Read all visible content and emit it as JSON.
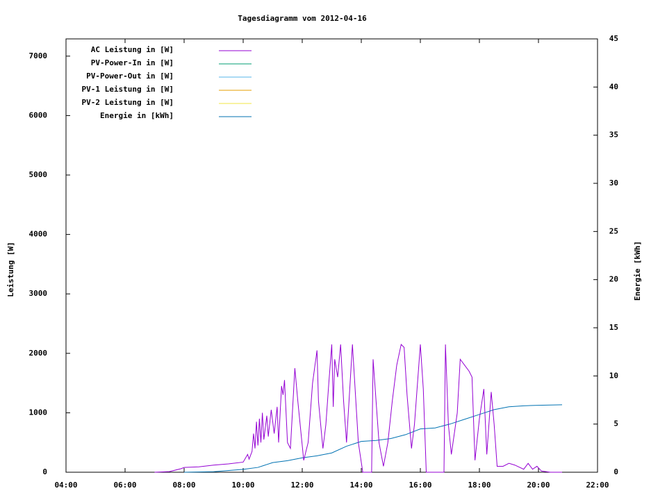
{
  "chart_data": {
    "type": "line",
    "title": "Tagesdiagramm vom 2012-04-16",
    "ylabel": "Leistung [W]",
    "y2label": "Energie [kWh]",
    "xlim": [
      4,
      22
    ],
    "xticks": [
      {
        "value": 4,
        "label": "04:00"
      },
      {
        "value": 6,
        "label": "06:00"
      },
      {
        "value": 8,
        "label": "08:00"
      },
      {
        "value": 10,
        "label": "10:00"
      },
      {
        "value": 12,
        "label": "12:00"
      },
      {
        "value": 14,
        "label": "14:00"
      },
      {
        "value": 16,
        "label": "16:00"
      },
      {
        "value": 18,
        "label": "18:00"
      },
      {
        "value": 20,
        "label": "20:00"
      },
      {
        "value": 22,
        "label": "22:00"
      }
    ],
    "ylim": [
      0,
      7290
    ],
    "yticks": [
      0,
      1000,
      2000,
      3000,
      4000,
      5000,
      6000,
      7000
    ],
    "y2lim": [
      0,
      45
    ],
    "y2ticks": [
      0,
      5,
      10,
      15,
      20,
      25,
      30,
      35,
      40,
      45
    ],
    "grid": false,
    "legend": "top-left",
    "series": [
      {
        "name": "AC Leistung in [W]",
        "color": "#9400d3",
        "x": [
          7.0,
          7.5,
          7.9,
          8.0,
          8.5,
          9.0,
          9.5,
          10.0,
          10.15,
          10.2,
          10.3,
          10.35,
          10.4,
          10.45,
          10.5,
          10.55,
          10.6,
          10.65,
          10.7,
          10.8,
          10.85,
          10.95,
          11.05,
          11.15,
          11.2,
          11.3,
          11.35,
          11.4,
          11.5,
          11.6,
          11.75,
          11.85,
          12.05,
          12.2,
          12.35,
          12.5,
          12.55,
          12.7,
          12.8,
          12.9,
          13.0,
          13.05,
          13.1,
          13.2,
          13.3,
          13.4,
          13.5,
          13.7,
          13.9,
          14.05,
          14.35,
          14.4,
          14.6,
          14.75,
          14.9,
          15.05,
          15.2,
          15.35,
          15.45,
          15.55,
          15.7,
          15.8,
          16.0,
          16.1,
          16.2,
          16.8,
          16.85,
          16.95,
          17.05,
          17.25,
          17.35,
          17.5,
          17.65,
          17.75,
          17.85,
          18.0,
          18.15,
          18.25,
          18.4,
          18.5,
          18.6,
          18.8,
          19.0,
          19.2,
          19.5,
          19.65,
          19.8,
          19.95,
          20.1,
          20.4,
          20.8
        ],
        "values": [
          0,
          10,
          60,
          80,
          90,
          120,
          140,
          170,
          300,
          220,
          350,
          650,
          400,
          850,
          450,
          900,
          500,
          1000,
          550,
          950,
          600,
          1050,
          650,
          1100,
          500,
          1450,
          1300,
          1550,
          500,
          400,
          1750,
          1200,
          200,
          500,
          1500,
          2050,
          1200,
          400,
          800,
          1500,
          2150,
          1100,
          1900,
          1600,
          2150,
          1200,
          500,
          2150,
          500,
          0,
          0,
          1900,
          500,
          100,
          500,
          1200,
          1800,
          2150,
          2100,
          1300,
          400,
          800,
          2150,
          1400,
          0,
          0,
          2150,
          800,
          300,
          1000,
          1900,
          1800,
          1700,
          1600,
          200,
          900,
          1400,
          300,
          1350,
          800,
          100,
          100,
          150,
          120,
          50,
          150,
          50,
          100,
          20,
          0,
          0
        ]
      },
      {
        "name": "PV-Power-In in [W]",
        "color": "#009e73",
        "x": [],
        "values": []
      },
      {
        "name": "PV-Power-Out in [W]",
        "color": "#56b4e9",
        "x": [],
        "values": []
      },
      {
        "name": "PV-1 Leistung in [W]",
        "color": "#e69f00",
        "x": [],
        "values": []
      },
      {
        "name": "PV-2 Leistung in [W]",
        "color": "#f0e442",
        "x": [],
        "values": []
      },
      {
        "name": "Energie in [kWh]",
        "color": "#0072b2",
        "axis": "y2",
        "x": [
          8.0,
          9.0,
          10.0,
          10.5,
          11.0,
          11.5,
          12.0,
          12.5,
          13.0,
          13.5,
          14.0,
          14.5,
          15.0,
          15.5,
          16.0,
          16.5,
          17.0,
          17.5,
          18.0,
          18.5,
          19.0,
          19.5,
          20.0,
          20.8
        ],
        "values": [
          0,
          0.05,
          0.3,
          0.5,
          1.0,
          1.2,
          1.5,
          1.7,
          2.0,
          2.7,
          3.2,
          3.3,
          3.5,
          3.9,
          4.5,
          4.6,
          5.0,
          5.5,
          6.0,
          6.5,
          6.8,
          6.9,
          6.95,
          7.0
        ]
      }
    ]
  }
}
